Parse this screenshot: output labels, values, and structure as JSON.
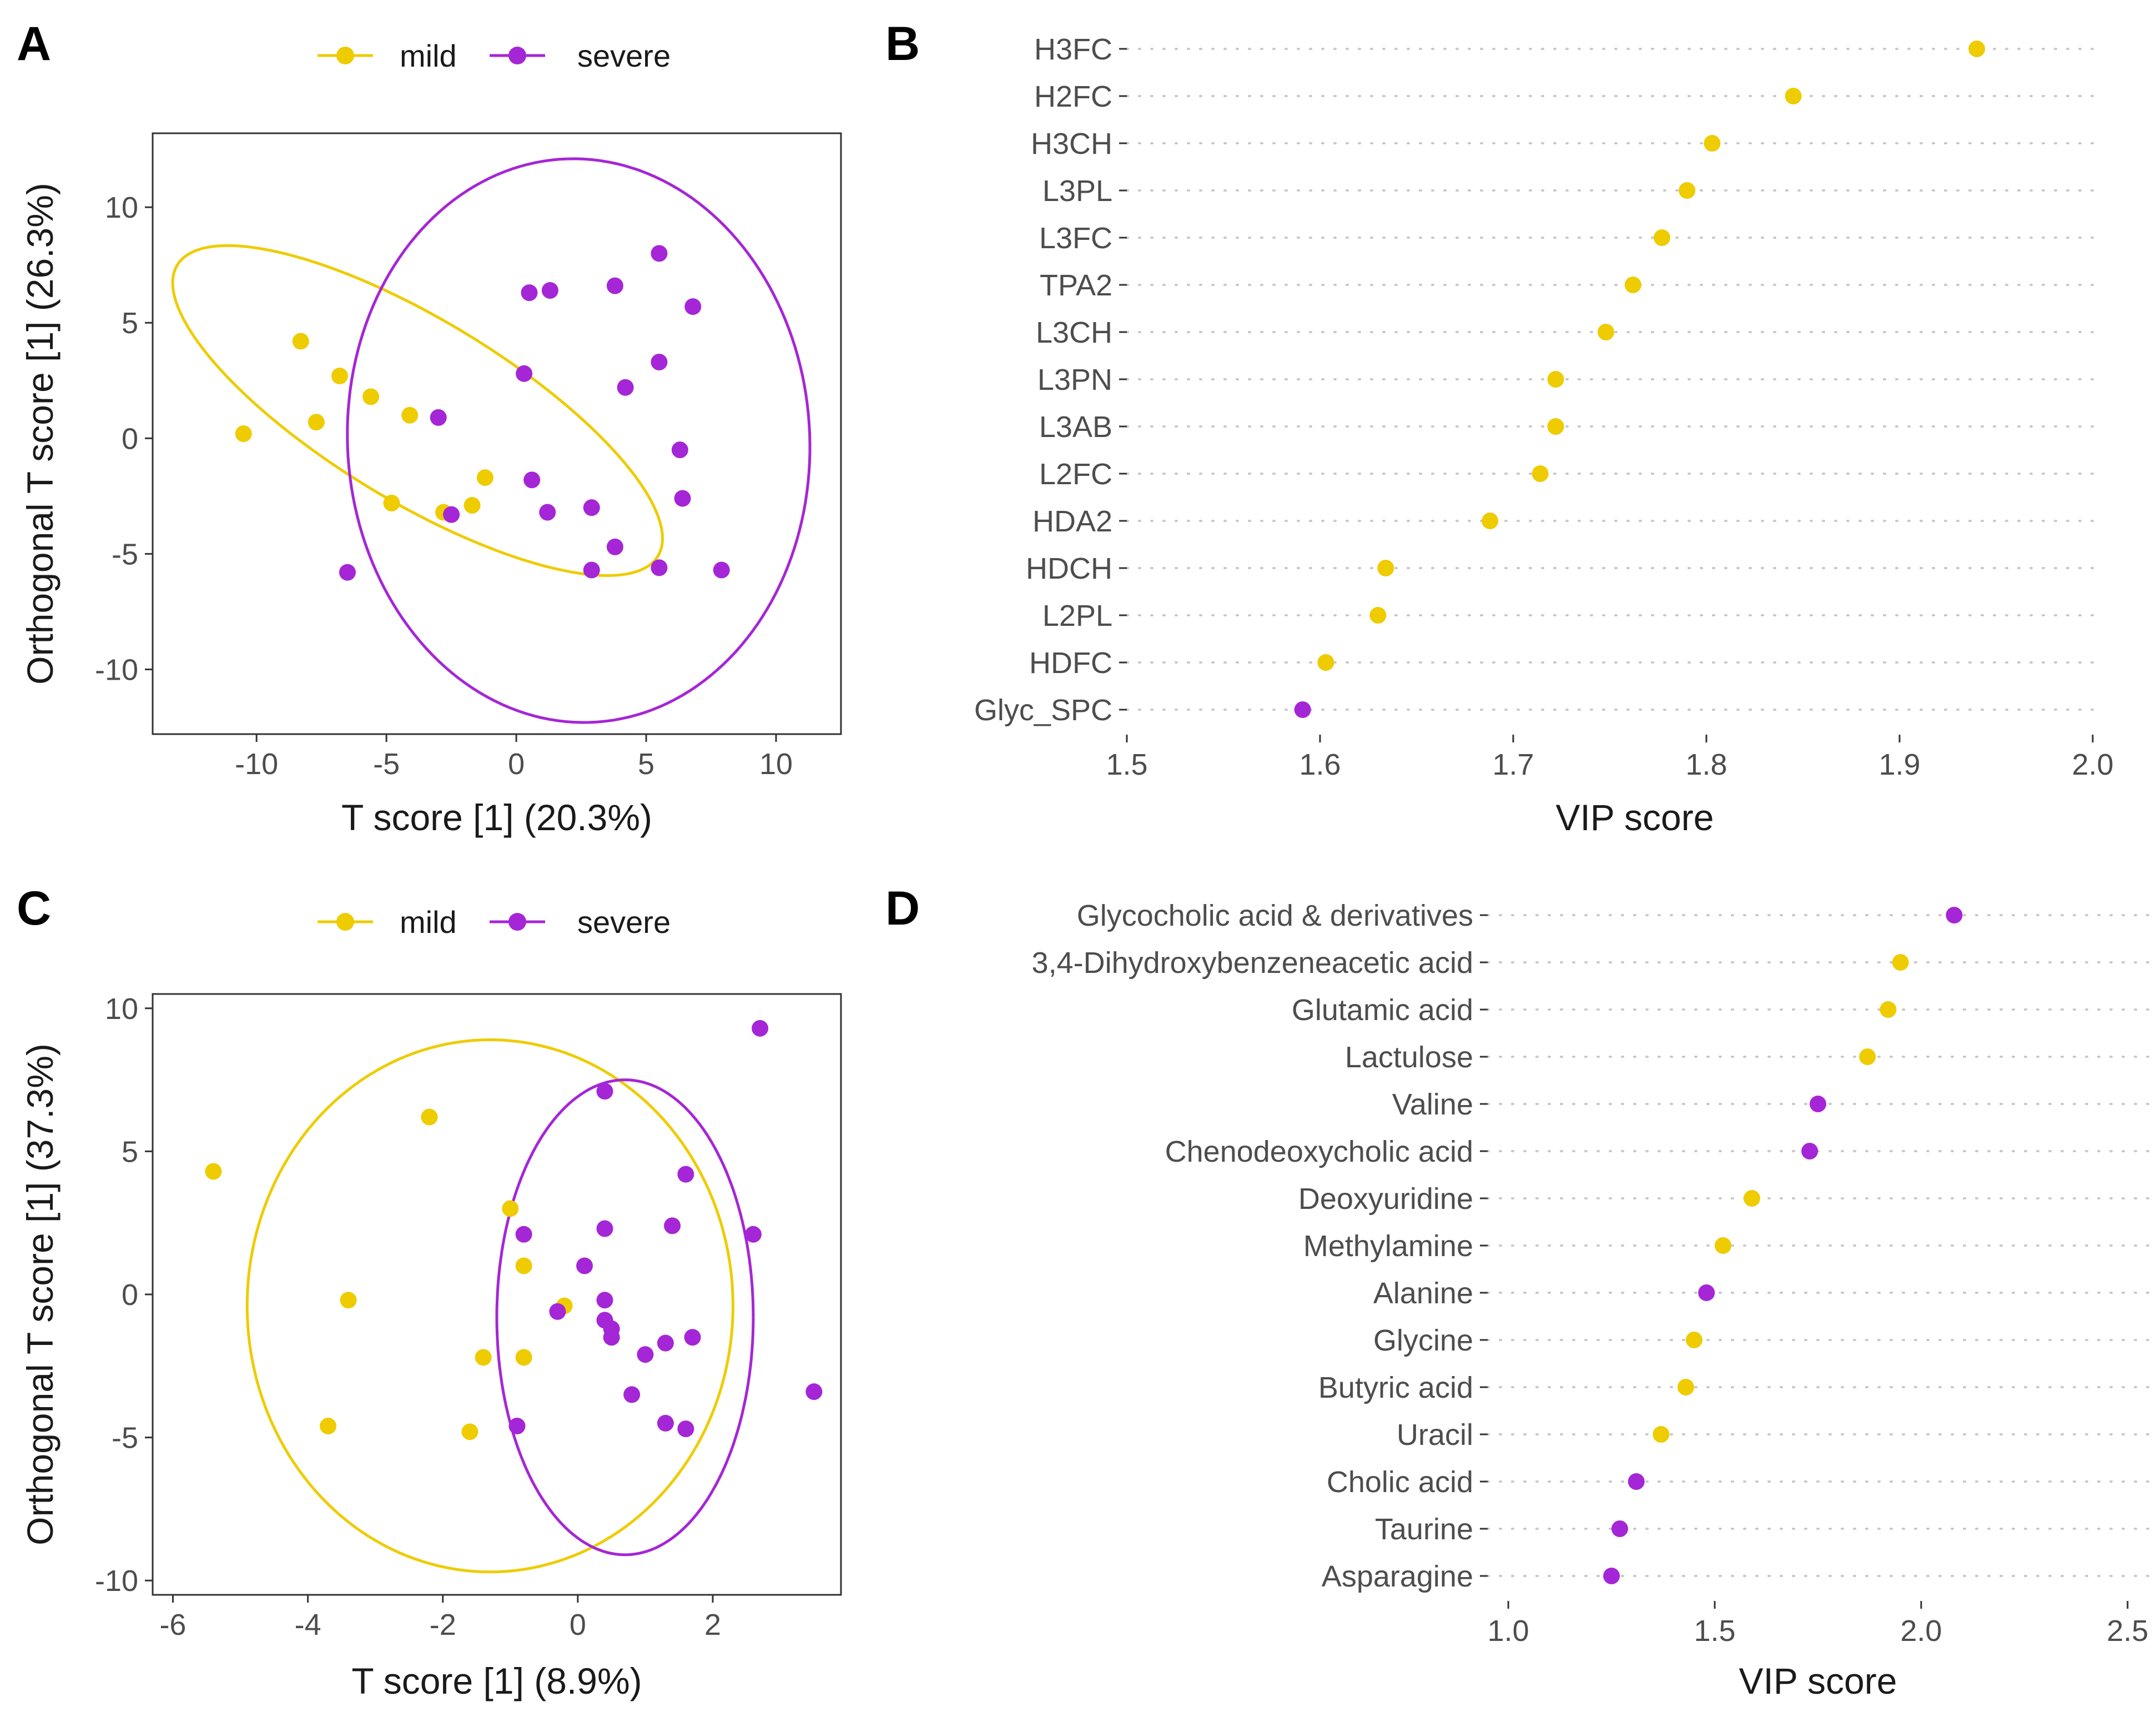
{
  "colors": {
    "mild": "#EECC00",
    "severe": "#A526D6"
  },
  "chart_data": [
    {
      "panel": "A",
      "type": "scatter",
      "legend": {
        "position": "top",
        "entries": [
          {
            "name": "mild",
            "color": "#EECC00"
          },
          {
            "name": "severe",
            "color": "#A526D6"
          }
        ]
      },
      "xlabel": "T score [1] (20.3%)",
      "ylabel": "Orthogonal T score [1] (26.3%)",
      "xlim": [
        -14,
        12.5
      ],
      "ylim": [
        -12.8,
        13.2
      ],
      "xticks": [
        -10,
        -5,
        0,
        5,
        10
      ],
      "xtick_labels": [
        "-10",
        "-5",
        "0",
        "5",
        "10"
      ],
      "yticks": [
        10,
        5,
        0,
        -5,
        -10
      ],
      "ytick_labels": [
        "10",
        "5",
        "0",
        "-5",
        "-10"
      ],
      "series": [
        {
          "name": "mild",
          "points": [
            [
              -8.3,
              4.2
            ],
            [
              -6.8,
              2.7
            ],
            [
              -7.7,
              0.7
            ],
            [
              -5.6,
              1.8
            ],
            [
              -10.5,
              0.2
            ],
            [
              -4.1,
              1.0
            ],
            [
              -1.2,
              -1.7
            ],
            [
              -4.8,
              -2.8
            ],
            [
              -2.8,
              -3.2
            ],
            [
              -1.7,
              -2.9
            ]
          ]
        },
        {
          "name": "severe",
          "points": [
            [
              5.5,
              8.0
            ],
            [
              0.5,
              6.3
            ],
            [
              1.3,
              6.4
            ],
            [
              3.8,
              6.6
            ],
            [
              6.8,
              5.7
            ],
            [
              5.5,
              3.3
            ],
            [
              0.3,
              2.8
            ],
            [
              4.2,
              2.2
            ],
            [
              -3.0,
              0.9
            ],
            [
              6.3,
              -0.5
            ],
            [
              0.6,
              -1.8
            ],
            [
              6.4,
              -2.6
            ],
            [
              -2.5,
              -3.3
            ],
            [
              1.2,
              -3.2
            ],
            [
              2.9,
              -3.0
            ],
            [
              3.8,
              -4.7
            ],
            [
              -6.5,
              -5.8
            ],
            [
              2.9,
              -5.7
            ],
            [
              5.5,
              -5.6
            ],
            [
              7.9,
              -5.7
            ]
          ]
        }
      ],
      "ellipses": [
        {
          "group": "mild",
          "center": [
            -3.8,
            1.2
          ],
          "semi_axes": [
            11.2,
            3.8
          ],
          "angle_deg": -35
        },
        {
          "group": "severe",
          "center": [
            2.4,
            -0.1
          ],
          "semi_axes": [
            8.9,
            12.2
          ],
          "angle_deg": 2
        }
      ]
    },
    {
      "panel": "B",
      "type": "dot",
      "xlabel": "VIP score",
      "xlim": [
        1.5,
        2.0
      ],
      "xticks": [
        1.5,
        1.6,
        1.7,
        1.8,
        1.9,
        2.0
      ],
      "xtick_labels": [
        "1.5",
        "1.6",
        "1.7",
        "1.8",
        "1.9",
        "2.0"
      ],
      "categories": [
        "H3FC",
        "H2FC",
        "H3CH",
        "L3PL",
        "L3FC",
        "TPA2",
        "L3CH",
        "L3PN",
        "L3AB",
        "L2FC",
        "HDA2",
        "HDCH",
        "L2PL",
        "HDFC",
        "Glyc_SPC"
      ],
      "values": [
        1.94,
        1.845,
        1.803,
        1.79,
        1.777,
        1.762,
        1.748,
        1.722,
        1.722,
        1.714,
        1.688,
        1.634,
        1.63,
        1.603,
        1.591
      ],
      "groups": [
        "mild",
        "mild",
        "mild",
        "mild",
        "mild",
        "mild",
        "mild",
        "mild",
        "mild",
        "mild",
        "mild",
        "mild",
        "mild",
        "mild",
        "severe"
      ]
    },
    {
      "panel": "C",
      "type": "scatter",
      "legend": {
        "position": "top",
        "entries": [
          {
            "name": "mild",
            "color": "#EECC00"
          },
          {
            "name": "severe",
            "color": "#A526D6"
          }
        ]
      },
      "xlabel": "T score [1] (8.9%)",
      "ylabel": "Orthogonal T score [1] (37.3%)",
      "xlim": [
        -6.3,
        3.9
      ],
      "ylim": [
        -10.5,
        10.5
      ],
      "xticks": [
        -6,
        -4,
        -2,
        0,
        2
      ],
      "xtick_labels": [
        "-6",
        "-4",
        "-2",
        "0",
        "2"
      ],
      "yticks": [
        10,
        5,
        0,
        -5,
        -10
      ],
      "ytick_labels": [
        "10",
        "5",
        "0",
        "-5",
        "-10"
      ],
      "series": [
        {
          "name": "mild",
          "points": [
            [
              -2.2,
              6.2
            ],
            [
              -5.4,
              4.3
            ],
            [
              -1.0,
              3.0
            ],
            [
              -0.8,
              1.0
            ],
            [
              -3.4,
              -0.2
            ],
            [
              -0.2,
              -0.4
            ],
            [
              -1.4,
              -2.2
            ],
            [
              -0.8,
              -2.2
            ],
            [
              -3.7,
              -4.6
            ],
            [
              -1.6,
              -4.8
            ]
          ]
        },
        {
          "name": "severe",
          "points": [
            [
              2.7,
              9.3
            ],
            [
              0.4,
              7.1
            ],
            [
              1.6,
              4.2
            ],
            [
              -0.8,
              2.1
            ],
            [
              0.4,
              2.3
            ],
            [
              1.4,
              2.4
            ],
            [
              2.6,
              2.1
            ],
            [
              0.1,
              1.0
            ],
            [
              0.4,
              -0.2
            ],
            [
              -0.3,
              -0.6
            ],
            [
              0.4,
              -0.9
            ],
            [
              0.5,
              -1.2
            ],
            [
              0.5,
              -1.5
            ],
            [
              1.3,
              -1.7
            ],
            [
              1.7,
              -1.5
            ],
            [
              1.0,
              -2.1
            ],
            [
              0.8,
              -3.5
            ],
            [
              3.5,
              -3.4
            ],
            [
              -0.9,
              -4.6
            ],
            [
              1.3,
              -4.5
            ],
            [
              1.6,
              -4.7
            ]
          ]
        }
      ],
      "ellipses": [
        {
          "group": "mild",
          "center": [
            -1.3,
            -0.4
          ],
          "semi_axes": [
            3.6,
            9.3
          ],
          "angle_deg": 0
        },
        {
          "group": "severe",
          "center": [
            0.7,
            -0.8
          ],
          "semi_axes": [
            1.9,
            8.3
          ],
          "angle_deg": 0
        }
      ]
    },
    {
      "panel": "D",
      "type": "dot",
      "xlabel": "VIP score",
      "xlim": [
        0.95,
        2.55
      ],
      "xticks": [
        1.0,
        1.5,
        2.0,
        2.5
      ],
      "xtick_labels": [
        "1.0",
        "1.5",
        "2.0",
        "2.5"
      ],
      "categories": [
        "Glycocholic acid & derivatives",
        "3,4-Dihydroxybenzeneacetic acid",
        "Glutamic acid",
        "Lactulose",
        "Valine",
        "Chenodeoxycholic acid",
        "Deoxyuridine",
        "Methylamine",
        "Alanine",
        "Glycine",
        "Butyric acid",
        "Uracil",
        "Cholic acid",
        "Taurine",
        "Asparagine"
      ],
      "values": [
        2.08,
        1.95,
        1.92,
        1.87,
        1.75,
        1.73,
        1.59,
        1.52,
        1.48,
        1.45,
        1.43,
        1.37,
        1.31,
        1.27,
        1.25
      ],
      "groups": [
        "severe",
        "mild",
        "mild",
        "mild",
        "severe",
        "severe",
        "mild",
        "mild",
        "severe",
        "mild",
        "mild",
        "mild",
        "severe",
        "severe",
        "severe"
      ]
    }
  ]
}
